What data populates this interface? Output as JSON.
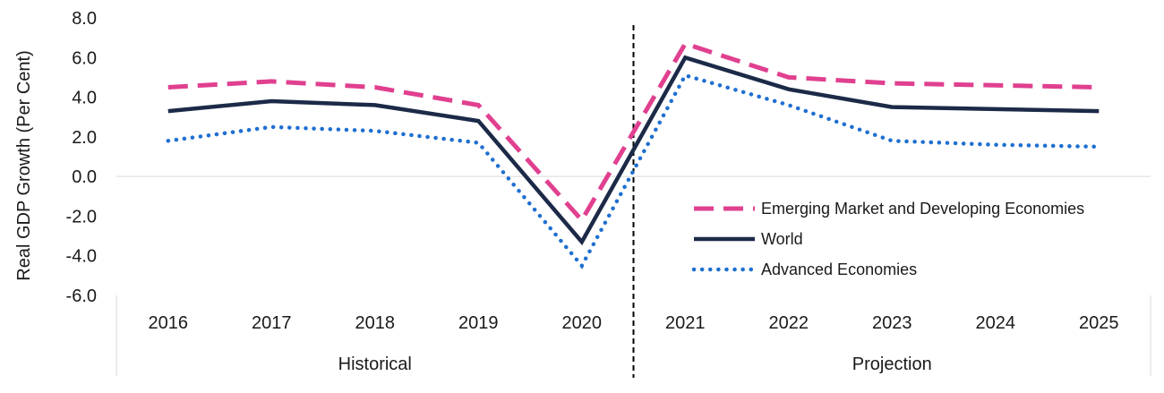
{
  "chart_data": {
    "type": "line",
    "title": "",
    "xlabel": "",
    "ylabel": "Real GDP Growth (Per Cent)",
    "categories": [
      "2016",
      "2017",
      "2018",
      "2019",
      "2020",
      "2021",
      "2022",
      "2023",
      "2024",
      "2025"
    ],
    "y_ticks": [
      "8.0",
      "6.0",
      "4.0",
      "2.0",
      "0.0",
      "-2.0",
      "-4.0",
      "-6.0"
    ],
    "ylim": [
      -6,
      8
    ],
    "groups": [
      {
        "label": "Historical",
        "from": "2016",
        "to": "2020"
      },
      {
        "label": "Projection",
        "from": "2021",
        "to": "2025"
      }
    ],
    "divider_between": [
      "2020",
      "2021"
    ],
    "legend_position": "lower-right",
    "grid": false,
    "series": [
      {
        "name": "Emerging Market and Developing Economies",
        "color": "#e0408f",
        "style": "dashed",
        "values": [
          4.5,
          4.8,
          4.5,
          3.6,
          -2.2,
          6.7,
          5.0,
          4.7,
          4.6,
          4.5
        ]
      },
      {
        "name": "World",
        "color": "#1c2a48",
        "style": "solid",
        "values": [
          3.3,
          3.8,
          3.6,
          2.8,
          -3.3,
          6.0,
          4.4,
          3.5,
          3.4,
          3.3
        ]
      },
      {
        "name": "Advanced Economies",
        "color": "#1f6fd1",
        "style": "dotted",
        "values": [
          1.8,
          2.5,
          2.3,
          1.7,
          -4.5,
          5.1,
          3.6,
          1.8,
          1.6,
          1.5
        ]
      }
    ]
  }
}
